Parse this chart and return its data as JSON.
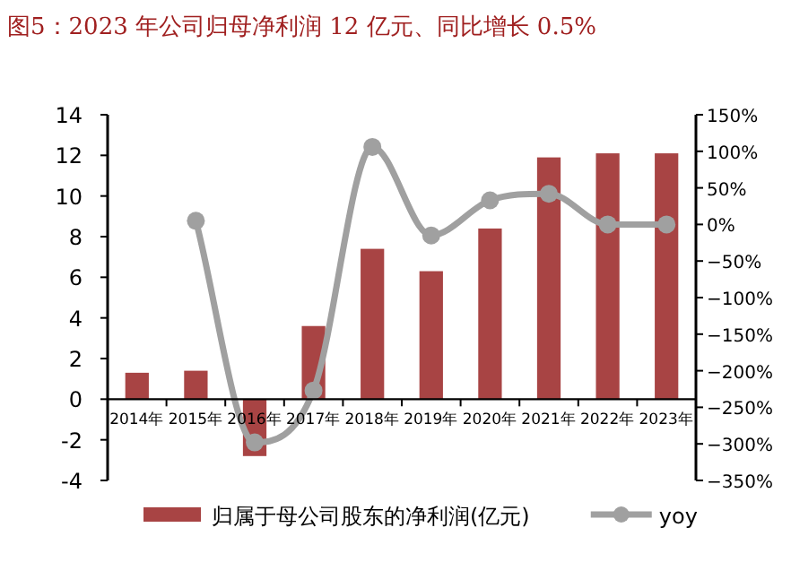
{
  "chart_data": {
    "type": "bar",
    "title": "图5：2023 年公司归母净利润 12 亿元、同比增长 0.5%",
    "categories": [
      "2014年",
      "2015年",
      "2016年",
      "2017年",
      "2018年",
      "2019年",
      "2020年",
      "2021年",
      "2022年",
      "2023年"
    ],
    "series": [
      {
        "name": "归属于母公司股东的净利润(亿元)",
        "color": "#a84444",
        "values": [
          1.3,
          1.4,
          -2.8,
          3.6,
          7.4,
          6.3,
          8.4,
          11.9,
          12.1,
          12.1
        ]
      },
      {
        "name": "yoy",
        "type": "line",
        "axis": "y2",
        "color": "#a0a0a0",
        "marker": "circle",
        "values": [
          null,
          5,
          -298,
          -227,
          106,
          -15,
          33,
          42,
          0,
          0
        ]
      }
    ],
    "ylim": [
      -4,
      14
    ],
    "yticks": [
      -4,
      -2,
      0,
      2,
      4,
      6,
      8,
      10,
      12,
      14
    ],
    "y2lim": [
      -350,
      150
    ],
    "y2ticks": [
      {
        "value": -350,
        "label": "−350%"
      },
      {
        "value": -300,
        "label": "−300%"
      },
      {
        "value": -250,
        "label": "−250%"
      },
      {
        "value": -200,
        "label": "−200%"
      },
      {
        "value": -150,
        "label": "−150%"
      },
      {
        "value": -100,
        "label": "−100%"
      },
      {
        "value": -50,
        "label": "−50%"
      },
      {
        "value": 0,
        "label": "0%"
      },
      {
        "value": 50,
        "label": "50%"
      },
      {
        "value": 100,
        "label": "100%"
      },
      {
        "value": 150,
        "label": "150%"
      }
    ],
    "legend": "bottom",
    "grid": false
  }
}
